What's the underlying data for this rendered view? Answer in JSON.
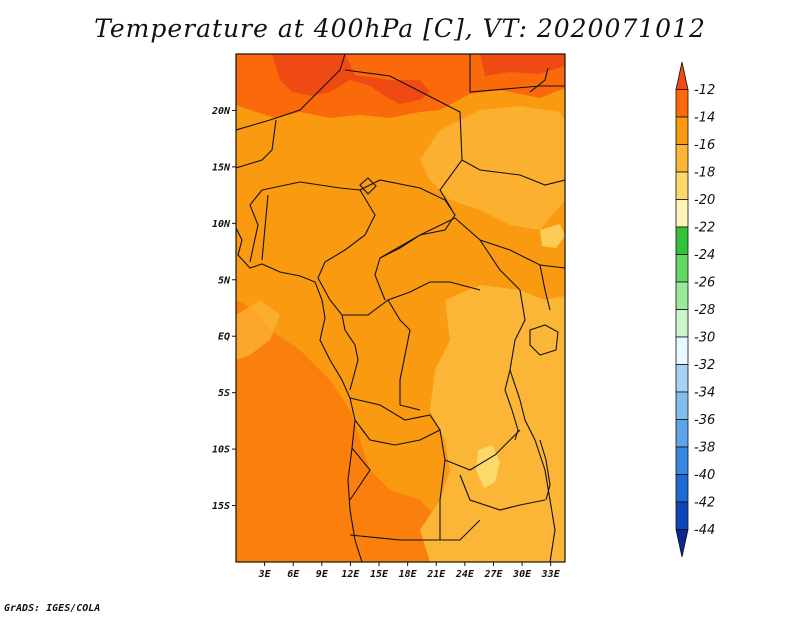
{
  "title": "Temperature at 400hPa [C], VT: 2020071012",
  "credit": "GrADS: IGES/COLA",
  "map": {
    "lon_range": [
      0,
      34.5
    ],
    "lat_range": [
      -20,
      25
    ],
    "lat_ticks": [
      {
        "v": 20,
        "label": "20N"
      },
      {
        "v": 15,
        "label": "15N"
      },
      {
        "v": 10,
        "label": "10N"
      },
      {
        "v": 5,
        "label": "5N"
      },
      {
        "v": 0,
        "label": "EQ"
      },
      {
        "v": -5,
        "label": "5S"
      },
      {
        "v": -10,
        "label": "10S"
      },
      {
        "v": -15,
        "label": "15S"
      }
    ],
    "lon_ticks": [
      {
        "v": 3,
        "label": "3E"
      },
      {
        "v": 6,
        "label": "6E"
      },
      {
        "v": 9,
        "label": "9E"
      },
      {
        "v": 12,
        "label": "12E"
      },
      {
        "v": 15,
        "label": "15E"
      },
      {
        "v": 18,
        "label": "18E"
      },
      {
        "v": 21,
        "label": "21E"
      },
      {
        "v": 24,
        "label": "24E"
      },
      {
        "v": 27,
        "label": "27E"
      },
      {
        "v": 30,
        "label": "30E"
      },
      {
        "v": 33,
        "label": "33E"
      }
    ]
  },
  "colorbar": {
    "levels": [
      "-12",
      "-14",
      "-16",
      "-18",
      "-20",
      "-22",
      "-24",
      "-26",
      "-28",
      "-30",
      "-32",
      "-34",
      "-36",
      "-38",
      "-40",
      "-42",
      "-44"
    ],
    "colors": [
      "#f04a14",
      "#fa6a0a",
      "#fa9a10",
      "#fbb637",
      "#fdd86a",
      "#fff5b8",
      "#34c23c",
      "#64d864",
      "#9ae89a",
      "#ccf5cc",
      "#e8f8ff",
      "#a8d2f5",
      "#82bdf0",
      "#5ea4ea",
      "#3a88e0",
      "#1e6ad0",
      "#0e46b8",
      "#0a2890",
      "#0a1260",
      "#e0e0ff"
    ]
  }
}
